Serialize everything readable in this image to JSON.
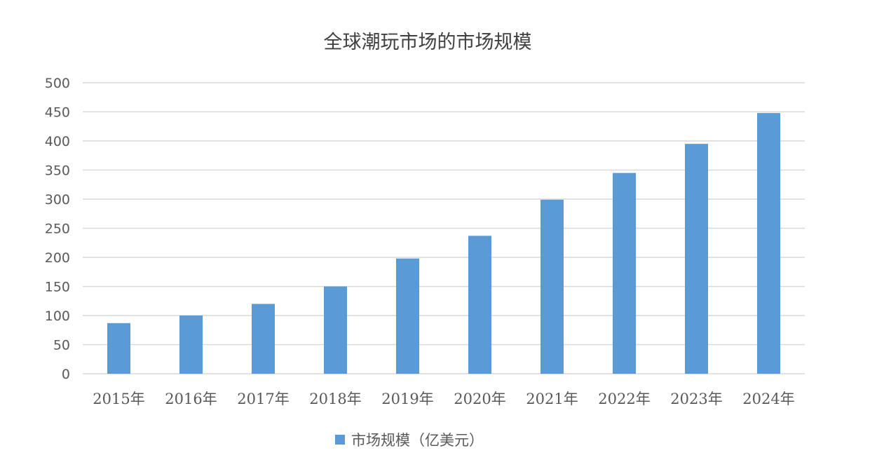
{
  "chart_data": {
    "type": "bar",
    "title": "全球潮玩市场的市场规模",
    "categories": [
      "2015年",
      "2016年",
      "2017年",
      "2018年",
      "2019年",
      "2020年",
      "2021年",
      "2022年",
      "2023年",
      "2024年"
    ],
    "series": [
      {
        "name": "市场规模（亿美元）",
        "values": [
          87,
          100,
          120,
          150,
          198,
          237,
          299,
          345,
          395,
          448
        ],
        "color": "#5b9bd5"
      }
    ],
    "ylim": [
      0,
      500
    ],
    "yticks": [
      0,
      50,
      100,
      150,
      200,
      250,
      300,
      350,
      400,
      450,
      500
    ],
    "grid": true,
    "legend_position": "bottom"
  }
}
